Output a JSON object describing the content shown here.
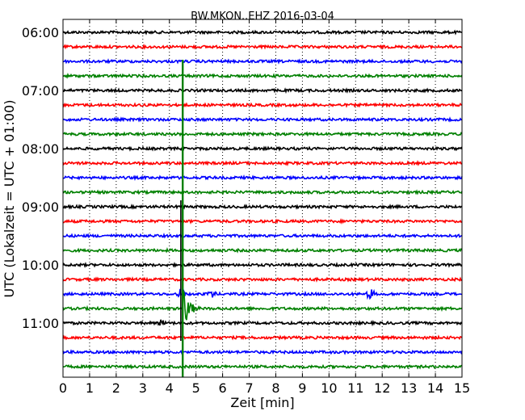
{
  "chart_data": {
    "type": "line",
    "title": "BW.MKON..EHZ 2016-03-04",
    "xlabel": "Zeit  [min]",
    "ylabel": "UTC (Lokalzeit = UTC + 01:00)",
    "xlim": [
      0,
      15
    ],
    "x_ticks": [
      "0",
      "1",
      "2",
      "3",
      "4",
      "5",
      "6",
      "7",
      "8",
      "9",
      "10",
      "11",
      "12",
      "13",
      "14",
      "15"
    ],
    "y_ticks": [
      "06:00",
      "07:00",
      "08:00",
      "09:00",
      "10:00",
      "11:00"
    ],
    "grid": "vertical dotted at each minute",
    "colors": [
      "#000000",
      "#ff0000",
      "#0000ff",
      "#008000"
    ],
    "rows": [
      {
        "start": "06:00",
        "color": "#000000"
      },
      {
        "start": "06:15",
        "color": "#ff0000"
      },
      {
        "start": "06:30",
        "color": "#0000ff"
      },
      {
        "start": "06:45",
        "color": "#008000"
      },
      {
        "start": "07:00",
        "color": "#000000"
      },
      {
        "start": "07:15",
        "color": "#ff0000"
      },
      {
        "start": "07:30",
        "color": "#0000ff"
      },
      {
        "start": "07:45",
        "color": "#008000"
      },
      {
        "start": "08:00",
        "color": "#000000"
      },
      {
        "start": "08:15",
        "color": "#ff0000"
      },
      {
        "start": "08:30",
        "color": "#0000ff"
      },
      {
        "start": "08:45",
        "color": "#008000"
      },
      {
        "start": "09:00",
        "color": "#000000"
      },
      {
        "start": "09:15",
        "color": "#ff0000"
      },
      {
        "start": "09:30",
        "color": "#0000ff"
      },
      {
        "start": "09:45",
        "color": "#008000"
      },
      {
        "start": "10:00",
        "color": "#000000"
      },
      {
        "start": "10:15",
        "color": "#ff0000"
      },
      {
        "start": "10:30",
        "color": "#0000ff"
      },
      {
        "start": "10:45",
        "color": "#008000"
      },
      {
        "start": "11:00",
        "color": "#000000"
      },
      {
        "start": "11:15",
        "color": "#ff0000"
      },
      {
        "start": "11:30",
        "color": "#0000ff"
      },
      {
        "start": "11:45",
        "color": "#008000"
      }
    ],
    "events": [
      {
        "row": "10:45",
        "minute": 4.55,
        "amplitude": "large",
        "note": "earthquake signal"
      },
      {
        "row": "10:30",
        "minute": 4.45,
        "amplitude": "medium"
      },
      {
        "row": "10:30",
        "minute": 5.6,
        "amplitude": "small"
      },
      {
        "row": "10:30",
        "minute": 11.55,
        "amplitude": "medium"
      },
      {
        "row": "11:00",
        "minute": 3.7,
        "amplitude": "small"
      }
    ]
  }
}
